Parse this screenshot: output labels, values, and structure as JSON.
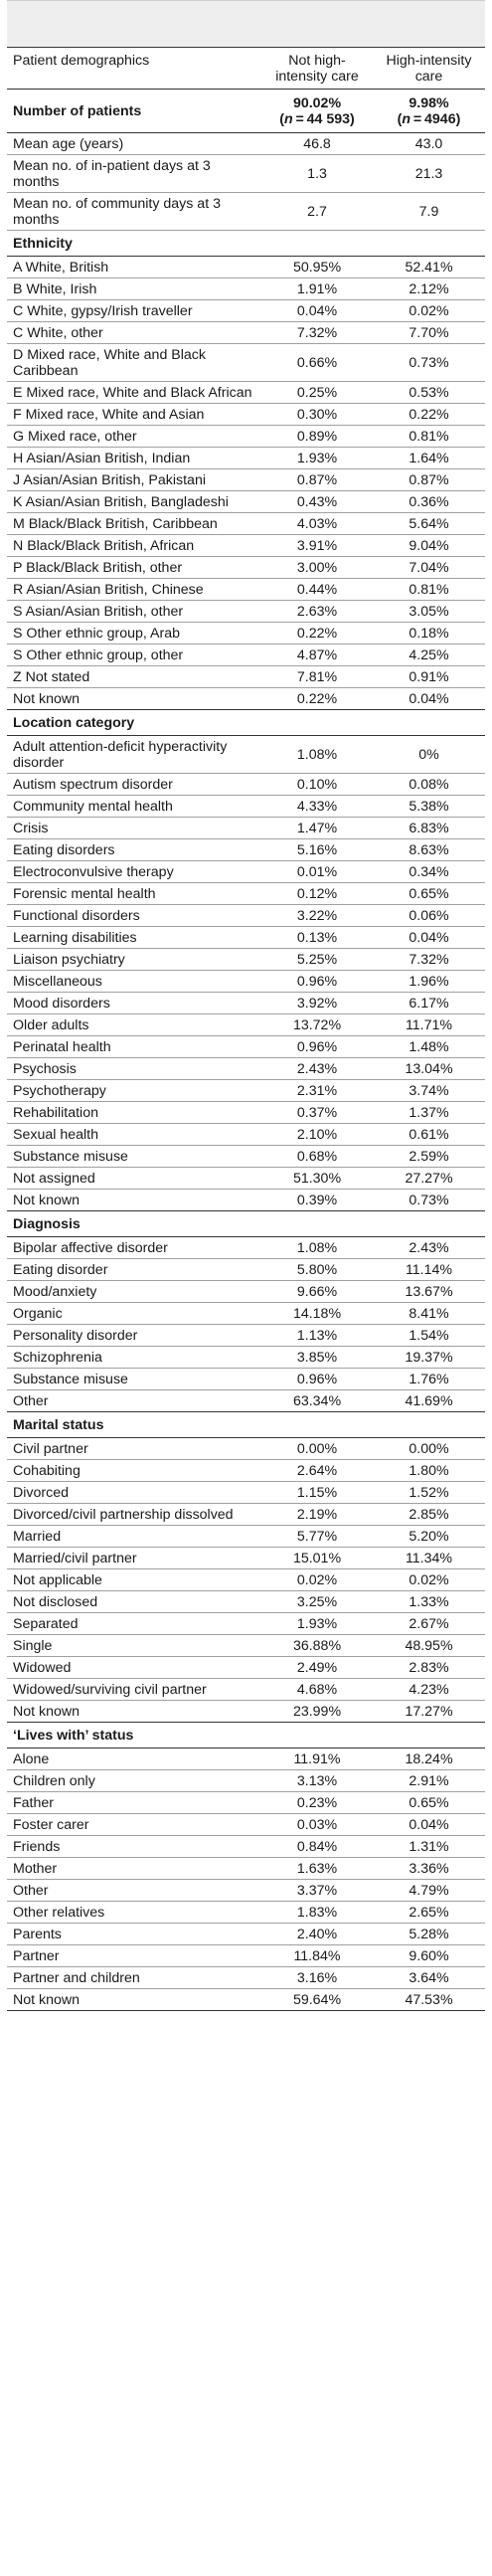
{
  "header": {
    "col1": "Patient demographics",
    "col2": "Not high-intensity care",
    "col3": "High-intensity care"
  },
  "patients": {
    "label": "Number of patients",
    "v1": "90.02%",
    "v1n": "(n = 44 593)",
    "v2": "9.98%",
    "v2n": "(n = 4946)"
  },
  "summary": [
    {
      "label": "Mean age (years)",
      "v1": "46.8",
      "v2": "43.0"
    },
    {
      "label": "Mean no. of in-patient days at 3 months",
      "v1": "1.3",
      "v2": "21.3"
    },
    {
      "label": "Mean no. of community days at 3 months",
      "v1": "2.7",
      "v2": "7.9"
    }
  ],
  "sections": [
    {
      "title": "Ethnicity",
      "rows": [
        {
          "label": "A White, British",
          "v1": "50.95%",
          "v2": "52.41%"
        },
        {
          "label": "B White, Irish",
          "v1": "1.91%",
          "v2": "2.12%"
        },
        {
          "label": "C White, gypsy/Irish traveller",
          "v1": "0.04%",
          "v2": "0.02%"
        },
        {
          "label": "C White, other",
          "v1": "7.32%",
          "v2": "7.70%"
        },
        {
          "label": "D Mixed race, White and Black Caribbean",
          "v1": "0.66%",
          "v2": "0.73%"
        },
        {
          "label": "E Mixed race, White and Black African",
          "v1": "0.25%",
          "v2": "0.53%"
        },
        {
          "label": "F Mixed race, White and Asian",
          "v1": "0.30%",
          "v2": "0.22%"
        },
        {
          "label": "G Mixed race, other",
          "v1": "0.89%",
          "v2": "0.81%"
        },
        {
          "label": "H Asian/Asian British, Indian",
          "v1": "1.93%",
          "v2": "1.64%"
        },
        {
          "label": "J Asian/Asian British, Pakistani",
          "v1": "0.87%",
          "v2": "0.87%"
        },
        {
          "label": "K Asian/Asian British, Bangladeshi",
          "v1": "0.43%",
          "v2": "0.36%"
        },
        {
          "label": "M Black/Black British, Caribbean",
          "v1": "4.03%",
          "v2": "5.64%"
        },
        {
          "label": "N Black/Black British, African",
          "v1": "3.91%",
          "v2": "9.04%"
        },
        {
          "label": "P Black/Black British, other",
          "v1": "3.00%",
          "v2": "7.04%"
        },
        {
          "label": "R Asian/Asian British, Chinese",
          "v1": "0.44%",
          "v2": "0.81%"
        },
        {
          "label": "S Asian/Asian British, other",
          "v1": "2.63%",
          "v2": "3.05%"
        },
        {
          "label": "S Other ethnic group, Arab",
          "v1": "0.22%",
          "v2": "0.18%"
        },
        {
          "label": "S Other ethnic group, other",
          "v1": "4.87%",
          "v2": "4.25%"
        },
        {
          "label": "Z Not stated",
          "v1": "7.81%",
          "v2": "0.91%"
        },
        {
          "label": "Not known",
          "v1": "0.22%",
          "v2": "0.04%"
        }
      ]
    },
    {
      "title": "Location category",
      "rows": [
        {
          "label": "Adult attention-deficit hyperactivity disorder",
          "v1": "1.08%",
          "v2": "0%"
        },
        {
          "label": "Autism spectrum disorder",
          "v1": "0.10%",
          "v2": "0.08%"
        },
        {
          "label": "Community mental health",
          "v1": "4.33%",
          "v2": "5.38%"
        },
        {
          "label": "Crisis",
          "v1": "1.47%",
          "v2": "6.83%"
        },
        {
          "label": "Eating disorders",
          "v1": "5.16%",
          "v2": "8.63%"
        },
        {
          "label": "Electroconvulsive therapy",
          "v1": "0.01%",
          "v2": "0.34%"
        },
        {
          "label": "Forensic mental health",
          "v1": "0.12%",
          "v2": "0.65%"
        },
        {
          "label": "Functional disorders",
          "v1": "3.22%",
          "v2": "0.06%"
        },
        {
          "label": "Learning disabilities",
          "v1": "0.13%",
          "v2": "0.04%"
        },
        {
          "label": "Liaison psychiatry",
          "v1": "5.25%",
          "v2": "7.32%"
        },
        {
          "label": "Miscellaneous",
          "v1": "0.96%",
          "v2": "1.96%"
        },
        {
          "label": "Mood disorders",
          "v1": "3.92%",
          "v2": "6.17%"
        },
        {
          "label": "Older adults",
          "v1": "13.72%",
          "v2": "11.71%"
        },
        {
          "label": "Perinatal health",
          "v1": "0.96%",
          "v2": "1.48%"
        },
        {
          "label": "Psychosis",
          "v1": "2.43%",
          "v2": "13.04%"
        },
        {
          "label": "Psychotherapy",
          "v1": "2.31%",
          "v2": "3.74%"
        },
        {
          "label": "Rehabilitation",
          "v1": "0.37%",
          "v2": "1.37%"
        },
        {
          "label": "Sexual health",
          "v1": "2.10%",
          "v2": "0.61%"
        },
        {
          "label": "Substance misuse",
          "v1": "0.68%",
          "v2": "2.59%"
        },
        {
          "label": "Not assigned",
          "v1": "51.30%",
          "v2": "27.27%"
        },
        {
          "label": "Not known",
          "v1": "0.39%",
          "v2": "0.73%"
        }
      ]
    },
    {
      "title": "Diagnosis",
      "rows": [
        {
          "label": "Bipolar affective disorder",
          "v1": "1.08%",
          "v2": "2.43%"
        },
        {
          "label": "Eating disorder",
          "v1": "5.80%",
          "v2": "11.14%"
        },
        {
          "label": "Mood/anxiety",
          "v1": "9.66%",
          "v2": "13.67%"
        },
        {
          "label": "Organic",
          "v1": "14.18%",
          "v2": "8.41%"
        },
        {
          "label": "Personality disorder",
          "v1": "1.13%",
          "v2": "1.54%"
        },
        {
          "label": "Schizophrenia",
          "v1": "3.85%",
          "v2": "19.37%"
        },
        {
          "label": "Substance misuse",
          "v1": "0.96%",
          "v2": "1.76%"
        },
        {
          "label": "Other",
          "v1": "63.34%",
          "v2": "41.69%"
        }
      ]
    },
    {
      "title": "Marital status",
      "rows": [
        {
          "label": "Civil partner",
          "v1": "0.00%",
          "v2": "0.00%"
        },
        {
          "label": "Cohabiting",
          "v1": "2.64%",
          "v2": "1.80%"
        },
        {
          "label": "Divorced",
          "v1": "1.15%",
          "v2": "1.52%"
        },
        {
          "label": "Divorced/civil partnership dissolved",
          "v1": "2.19%",
          "v2": "2.85%"
        },
        {
          "label": "Married",
          "v1": "5.77%",
          "v2": "5.20%"
        },
        {
          "label": "Married/civil partner",
          "v1": "15.01%",
          "v2": "11.34%"
        },
        {
          "label": "Not applicable",
          "v1": "0.02%",
          "v2": "0.02%"
        },
        {
          "label": "Not disclosed",
          "v1": "3.25%",
          "v2": "1.33%"
        },
        {
          "label": "Separated",
          "v1": "1.93%",
          "v2": "2.67%"
        },
        {
          "label": "Single",
          "v1": "36.88%",
          "v2": "48.95%"
        },
        {
          "label": "Widowed",
          "v1": "2.49%",
          "v2": "2.83%"
        },
        {
          "label": "Widowed/surviving civil partner",
          "v1": "4.68%",
          "v2": "4.23%"
        },
        {
          "label": "Not known",
          "v1": "23.99%",
          "v2": "17.27%"
        }
      ]
    },
    {
      "title": "‘Lives with’ status",
      "rows": [
        {
          "label": "Alone",
          "v1": "11.91%",
          "v2": "18.24%"
        },
        {
          "label": "Children only",
          "v1": "3.13%",
          "v2": "2.91%"
        },
        {
          "label": "Father",
          "v1": "0.23%",
          "v2": "0.65%"
        },
        {
          "label": "Foster carer",
          "v1": "0.03%",
          "v2": "0.04%"
        },
        {
          "label": "Friends",
          "v1": "0.84%",
          "v2": "1.31%"
        },
        {
          "label": "Mother",
          "v1": "1.63%",
          "v2": "3.36%"
        },
        {
          "label": "Other",
          "v1": "3.37%",
          "v2": "4.79%"
        },
        {
          "label": "Other relatives",
          "v1": "1.83%",
          "v2": "2.65%"
        },
        {
          "label": "Parents",
          "v1": "2.40%",
          "v2": "5.28%"
        },
        {
          "label": "Partner",
          "v1": "11.84%",
          "v2": "9.60%"
        },
        {
          "label": "Partner and children",
          "v1": "3.16%",
          "v2": "3.64%"
        },
        {
          "label": "Not known",
          "v1": "59.64%",
          "v2": "47.53%"
        }
      ]
    }
  ]
}
